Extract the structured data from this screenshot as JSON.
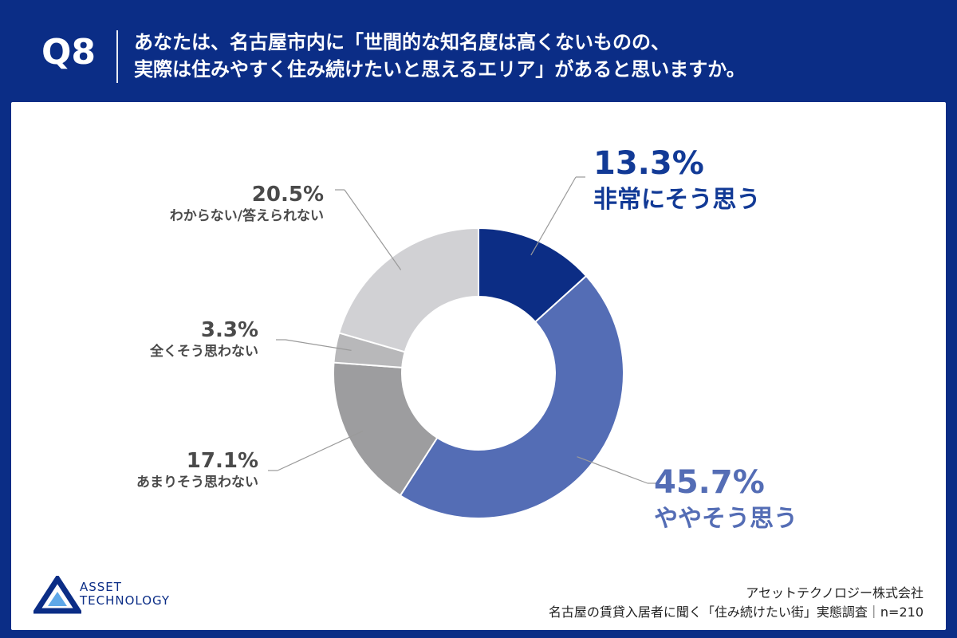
{
  "header": {
    "question_number": "Q8",
    "question_line1": "あなたは、名古屋市内に「世間的な知名度は高くないものの、",
    "question_line2": "実際は住みやすく住み続けたいと思えるエリア」があると思いますか。"
  },
  "footer": {
    "logo_line1": "ASSET",
    "logo_line2": "TECHNOLOGY",
    "company": "アセットテクノロジー株式会社",
    "survey": "名古屋の賃貸入居者に聞く「住み続けたい街」実態調査｜n=210"
  },
  "colors": {
    "background": "#0b2d86",
    "accent_text": "#123a96",
    "muted_text": "#4a4a4a"
  },
  "chart_data": {
    "type": "pie",
    "donut": true,
    "legend": "none",
    "unit": "%",
    "slices": [
      {
        "label": "非常にそう思う",
        "value": 13.3,
        "value_label": "13.3%",
        "color": "#0c2d85"
      },
      {
        "label": "ややそう思う",
        "value": 45.7,
        "value_label": "45.7%",
        "color": "#546db5"
      },
      {
        "label": "あまりそう思わない",
        "value": 17.1,
        "value_label": "17.1%",
        "color": "#9d9d9f"
      },
      {
        "label": "全くそう思わない",
        "value": 3.3,
        "value_label": "3.3%",
        "color": "#b8b8ba"
      },
      {
        "label": "わからない/答えられない",
        "value": 20.5,
        "value_label": "20.5%",
        "color": "#d1d1d4"
      }
    ]
  }
}
